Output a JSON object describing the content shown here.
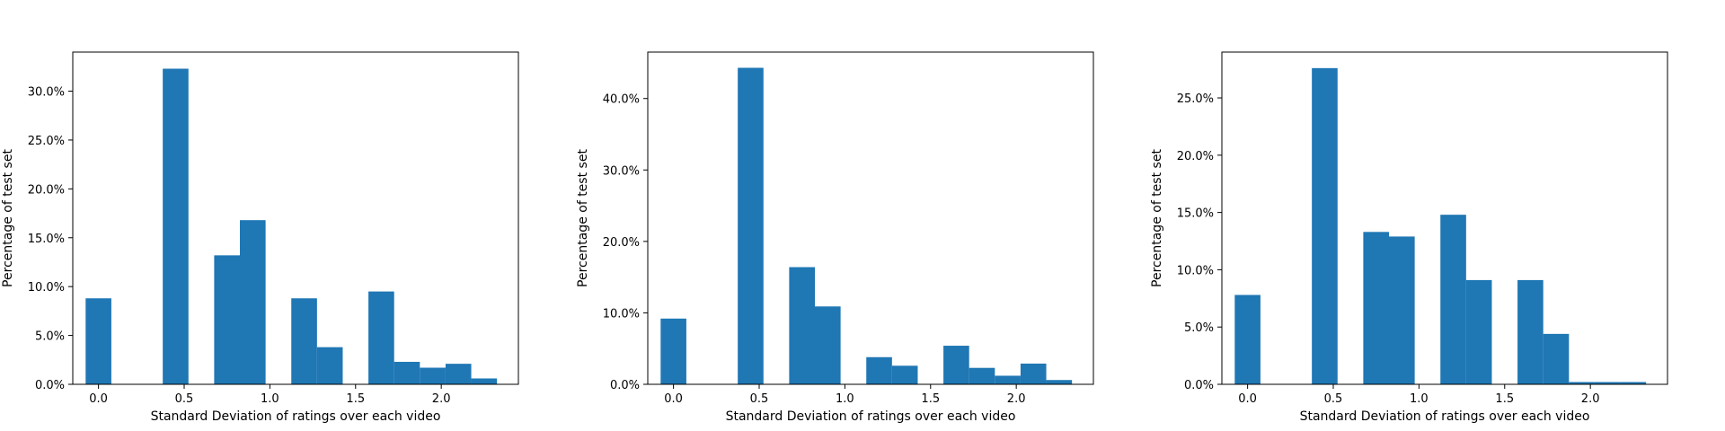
{
  "colors": {
    "bar": "#1f77b4",
    "axis": "#000000",
    "background": "#ffffff"
  },
  "chart_data": [
    {
      "type": "bar",
      "xlabel": "Standard Deviation of ratings over each video",
      "ylabel": "Percentage of test set",
      "xlim": [
        -0.15,
        2.45
      ],
      "ylim": [
        0,
        34
      ],
      "x_ticks": [
        0.0,
        0.5,
        1.0,
        1.5,
        2.0
      ],
      "x_tick_labels": [
        "0.0",
        "0.5",
        "1.0",
        "1.5",
        "2.0"
      ],
      "y_ticks": [
        0,
        5,
        10,
        15,
        20,
        25,
        30
      ],
      "y_tick_labels": [
        "0.0%",
        "5.0%",
        "10.0%",
        "15.0%",
        "20.0%",
        "25.0%",
        "30.0%"
      ],
      "bin_width": 0.15,
      "bins": [
        {
          "x": 0.0,
          "value": 8.8
        },
        {
          "x": 0.45,
          "value": 32.3
        },
        {
          "x": 0.75,
          "value": 13.2
        },
        {
          "x": 0.9,
          "value": 16.8
        },
        {
          "x": 1.2,
          "value": 8.8
        },
        {
          "x": 1.35,
          "value": 3.8
        },
        {
          "x": 1.65,
          "value": 9.5
        },
        {
          "x": 1.8,
          "value": 2.3
        },
        {
          "x": 1.95,
          "value": 1.7
        },
        {
          "x": 2.1,
          "value": 2.1
        },
        {
          "x": 2.25,
          "value": 0.6
        }
      ]
    },
    {
      "type": "bar",
      "xlabel": "Standard Deviation of ratings over each video",
      "ylabel": "Percentage of test set",
      "xlim": [
        -0.15,
        2.45
      ],
      "ylim": [
        0,
        46.5
      ],
      "x_ticks": [
        0.0,
        0.5,
        1.0,
        1.5,
        2.0
      ],
      "x_tick_labels": [
        "0.0",
        "0.5",
        "1.0",
        "1.5",
        "2.0"
      ],
      "y_ticks": [
        0,
        10,
        20,
        30,
        40
      ],
      "y_tick_labels": [
        "0.0%",
        "10.0%",
        "20.0%",
        "30.0%",
        "40.0%"
      ],
      "bin_width": 0.15,
      "bins": [
        {
          "x": 0.0,
          "value": 9.2
        },
        {
          "x": 0.45,
          "value": 44.3
        },
        {
          "x": 0.75,
          "value": 16.4
        },
        {
          "x": 0.9,
          "value": 10.9
        },
        {
          "x": 1.2,
          "value": 3.8
        },
        {
          "x": 1.35,
          "value": 2.6
        },
        {
          "x": 1.65,
          "value": 5.4
        },
        {
          "x": 1.8,
          "value": 2.3
        },
        {
          "x": 1.95,
          "value": 1.2
        },
        {
          "x": 2.1,
          "value": 2.9
        },
        {
          "x": 2.25,
          "value": 0.6
        }
      ]
    },
    {
      "type": "bar",
      "xlabel": "Standard Deviation of ratings over each video",
      "ylabel": "Percentage of test set",
      "xlim": [
        -0.15,
        2.45
      ],
      "ylim": [
        0,
        29
      ],
      "x_ticks": [
        0.0,
        0.5,
        1.0,
        1.5,
        2.0
      ],
      "x_tick_labels": [
        "0.0",
        "0.5",
        "1.0",
        "1.5",
        "2.0"
      ],
      "y_ticks": [
        0,
        5,
        10,
        15,
        20,
        25
      ],
      "y_tick_labels": [
        "0.0%",
        "5.0%",
        "10.0%",
        "15.0%",
        "20.0%",
        "25.0%"
      ],
      "bin_width": 0.15,
      "bins": [
        {
          "x": 0.0,
          "value": 7.8
        },
        {
          "x": 0.45,
          "value": 27.6
        },
        {
          "x": 0.75,
          "value": 13.3
        },
        {
          "x": 0.9,
          "value": 12.9
        },
        {
          "x": 1.2,
          "value": 14.8
        },
        {
          "x": 1.35,
          "value": 9.1
        },
        {
          "x": 1.65,
          "value": 9.1
        },
        {
          "x": 1.8,
          "value": 4.4
        },
        {
          "x": 1.95,
          "value": 0.2
        },
        {
          "x": 2.1,
          "value": 0.2
        },
        {
          "x": 2.25,
          "value": 0.2
        }
      ]
    }
  ]
}
